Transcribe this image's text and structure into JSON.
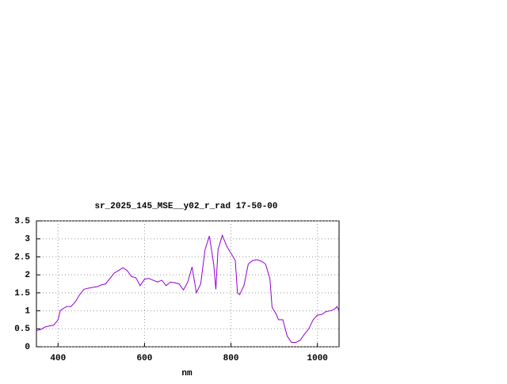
{
  "chart_data": {
    "type": "line",
    "title": "sr_2025_145_MSE__y02_r_rad 17-50-00",
    "x_label": "nm",
    "x": [
      350,
      360,
      370,
      380,
      390,
      400,
      405,
      410,
      420,
      430,
      440,
      450,
      460,
      470,
      480,
      490,
      500,
      510,
      520,
      530,
      540,
      550,
      560,
      570,
      580,
      590,
      600,
      610,
      620,
      630,
      640,
      650,
      660,
      670,
      680,
      690,
      700,
      710,
      720,
      730,
      740,
      750,
      760,
      765,
      770,
      780,
      790,
      800,
      810,
      815,
      820,
      830,
      840,
      850,
      860,
      870,
      880,
      890,
      895,
      905,
      910,
      920,
      930,
      940,
      950,
      960,
      970,
      980,
      990,
      1000,
      1010,
      1020,
      1030,
      1040,
      1045,
      1050
    ],
    "series": [
      {
        "name": "sr_2025_145_MSE__y02_r_rad 17-50-00",
        "color": "#9400d3",
        "values": [
          0.45,
          0.48,
          0.55,
          0.58,
          0.6,
          0.75,
          1.0,
          1.05,
          1.12,
          1.12,
          1.25,
          1.45,
          1.6,
          1.63,
          1.65,
          1.67,
          1.72,
          1.75,
          1.9,
          2.05,
          2.12,
          2.2,
          2.12,
          1.95,
          1.92,
          1.7,
          1.88,
          1.9,
          1.85,
          1.8,
          1.85,
          1.7,
          1.8,
          1.78,
          1.75,
          1.58,
          1.8,
          2.22,
          1.5,
          1.75,
          2.7,
          3.08,
          2.3,
          1.6,
          2.7,
          3.1,
          2.8,
          2.6,
          2.4,
          1.5,
          1.45,
          1.7,
          2.3,
          2.4,
          2.42,
          2.38,
          2.3,
          1.9,
          1.1,
          0.9,
          0.75,
          0.75,
          0.3,
          0.12,
          0.12,
          0.18,
          0.35,
          0.5,
          0.75,
          0.88,
          0.9,
          0.98,
          1.0,
          1.05,
          1.12,
          1.0
        ]
      }
    ],
    "xlim": [
      350,
      1050
    ],
    "xticks": [
      400,
      600,
      800,
      1000
    ],
    "ylim": [
      0,
      3.5
    ],
    "yticks": [
      0,
      0.5,
      1,
      1.5,
      2,
      2.5,
      3,
      3.5
    ],
    "grid": true
  }
}
